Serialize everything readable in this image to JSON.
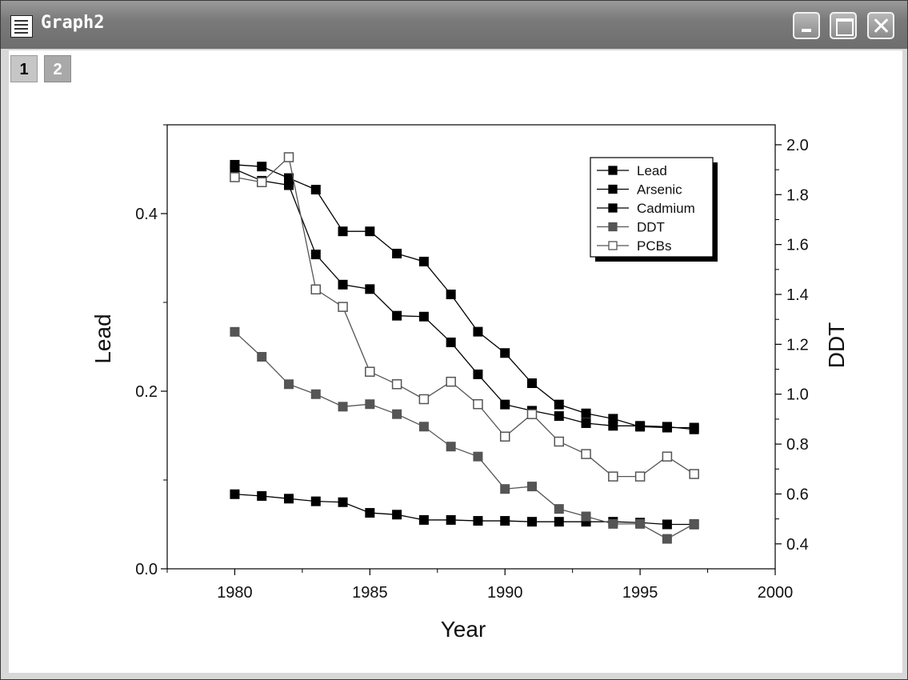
{
  "window": {
    "title": "Graph2"
  },
  "layer_tabs": [
    "1",
    "2"
  ],
  "chart_data": {
    "type": "line",
    "xlabel": "Year",
    "ylabel_left": "Lead",
    "ylabel_right": "DDT",
    "xlim": [
      1977.5,
      2000
    ],
    "ylim_left": [
      0.0,
      0.5
    ],
    "ylim_right": [
      0.3,
      2.08
    ],
    "x_ticks": [
      1980,
      1985,
      1990,
      1995,
      2000
    ],
    "y_ticks_left": [
      "0.0",
      "0.2",
      "0.4"
    ],
    "y_ticks_right": [
      "0.4",
      "0.6",
      "0.8",
      "1.0",
      "1.2",
      "1.4",
      "1.6",
      "1.8",
      "2.0"
    ],
    "grid": false,
    "legend_position": "top-right",
    "x": [
      1980,
      1981,
      1982,
      1983,
      1984,
      1985,
      1986,
      1987,
      1988,
      1989,
      1990,
      1991,
      1992,
      1993,
      1994,
      1995,
      1996,
      1997
    ],
    "series": [
      {
        "name": "Lead",
        "axis": "left",
        "marker": "filled-square",
        "color": "#000000",
        "values": [
          0.455,
          0.453,
          0.44,
          0.427,
          0.38,
          0.38,
          0.355,
          0.346,
          0.309,
          0.267,
          0.243,
          0.209,
          0.185,
          0.175,
          0.169,
          0.16,
          0.159,
          0.159
        ]
      },
      {
        "name": "Arsenic",
        "axis": "left",
        "marker": "filled-square",
        "color": "#000000",
        "values": [
          0.45,
          0.437,
          0.432,
          0.354,
          0.32,
          0.315,
          0.285,
          0.284,
          0.255,
          0.219,
          0.185,
          0.178,
          0.172,
          0.164,
          0.161,
          0.161,
          0.16,
          0.157
        ]
      },
      {
        "name": "Cadmium",
        "axis": "left",
        "marker": "filled-square",
        "color": "#000000",
        "values": [
          0.084,
          0.082,
          0.079,
          0.076,
          0.075,
          0.063,
          0.061,
          0.055,
          0.055,
          0.054,
          0.054,
          0.053,
          0.053,
          0.053,
          0.053,
          0.052,
          0.05,
          0.05
        ]
      },
      {
        "name": "DDT",
        "axis": "right",
        "marker": "filled-square",
        "color": "#555555",
        "values": [
          1.25,
          1.15,
          1.04,
          1.0,
          0.95,
          0.96,
          0.92,
          0.87,
          0.79,
          0.75,
          0.62,
          0.63,
          0.54,
          0.51,
          0.48,
          0.48,
          0.42,
          0.48
        ]
      },
      {
        "name": "PCBs",
        "axis": "right",
        "marker": "open-square",
        "color": "#555555",
        "values": [
          1.87,
          1.85,
          1.95,
          1.42,
          1.35,
          1.09,
          1.04,
          0.98,
          1.05,
          0.96,
          0.83,
          0.92,
          0.81,
          0.76,
          0.67,
          0.67,
          0.75,
          0.68
        ]
      }
    ]
  }
}
